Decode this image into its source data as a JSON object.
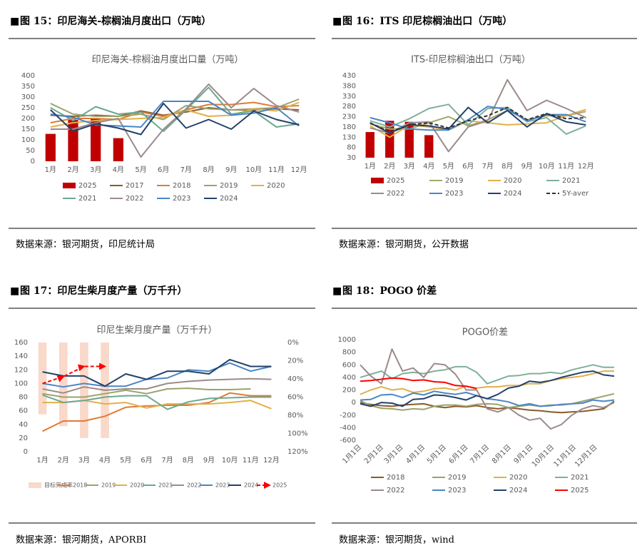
{
  "captions": [
    "图 15：印尼海关-棕榈油月度出口（万吨）",
    "图 16：ITS 印尼棕榈油出口（万吨）",
    "图 17：印尼生柴月度产量（万千升）",
    "图 18：POGO 价差"
  ],
  "sources": [
    "数据来源：银河期货，印尼统计局",
    "数据来源：银河期货，公开数据",
    "数据来源：银河期货，APORBI",
    "数据来源：银河期货，wind"
  ],
  "chart_data": [
    {
      "type": "line",
      "title": "印尼海关-棕榈油月度出口量（万吨）",
      "categories": [
        "1月",
        "2月",
        "3月",
        "4月",
        "5月",
        "6月",
        "7月",
        "8月",
        "9月",
        "10月",
        "11月",
        "12月"
      ],
      "ylim": [
        0,
        400
      ],
      "yticks": [
        0,
        50,
        100,
        150,
        200,
        250,
        300,
        350,
        400
      ],
      "grid": false,
      "series": [
        {
          "name": "2025",
          "type": "bar",
          "color": "#c00000",
          "values": [
            128,
            193,
            200,
            108,
            null,
            null,
            null,
            null,
            null,
            null,
            null,
            null
          ]
        },
        {
          "name": "2017",
          "color": "#8b5a2b",
          "values": [
            215,
            210,
            215,
            210,
            235,
            215,
            230,
            250,
            240,
            240,
            245,
            240
          ]
        },
        {
          "name": "2018",
          "color": "#e07b39",
          "values": [
            180,
            200,
            200,
            195,
            230,
            210,
            240,
            265,
            265,
            275,
            255,
            260
          ]
        },
        {
          "name": "2019",
          "color": "#9aa36a",
          "values": [
            270,
            220,
            210,
            210,
            220,
            195,
            260,
            245,
            240,
            245,
            250,
            290
          ]
        },
        {
          "name": "2020",
          "color": "#e2b04a",
          "values": [
            160,
            180,
            190,
            195,
            200,
            205,
            240,
            210,
            215,
            245,
            235,
            275
          ]
        },
        {
          "name": "2021",
          "color": "#6aa98f",
          "values": [
            250,
            190,
            255,
            220,
            230,
            140,
            240,
            345,
            220,
            235,
            160,
            175
          ]
        },
        {
          "name": "2022",
          "color": "#9c8a8a",
          "values": [
            150,
            150,
            180,
            200,
            20,
            150,
            245,
            360,
            250,
            340,
            260,
            230
          ]
        },
        {
          "name": "2023",
          "color": "#4a86c6",
          "values": [
            220,
            205,
            170,
            165,
            160,
            280,
            280,
            280,
            215,
            225,
            250,
            165
          ]
        },
        {
          "name": "2024",
          "color": "#24416b",
          "values": [
            240,
            140,
            175,
            155,
            125,
            270,
            155,
            195,
            150,
            235,
            195,
            170
          ]
        }
      ]
    },
    {
      "type": "line",
      "title": "ITS-印尼棕榈油出口（万吨）",
      "categories": [
        "1月",
        "2月",
        "3月",
        "4月",
        "5月",
        "6月",
        "7月",
        "8月",
        "9月",
        "10月",
        "11月",
        "12月"
      ],
      "ylim": [
        30,
        430
      ],
      "yticks": [
        30,
        80,
        130,
        180,
        230,
        280,
        330,
        380,
        430
      ],
      "grid": false,
      "series": [
        {
          "name": "2025",
          "type": "bar",
          "color": "#c00000",
          "values": [
            155,
            210,
            205,
            140,
            null,
            null,
            null,
            null,
            null,
            null,
            null,
            null
          ]
        },
        {
          "name": "2019",
          "color": "#a3a86b",
          "values": [
            195,
            170,
            170,
            200,
            230,
            185,
            215,
            260,
            215,
            235,
            235,
            255
          ]
        },
        {
          "name": "2020",
          "color": "#e2b04a",
          "values": [
            185,
            130,
            190,
            180,
            165,
            210,
            200,
            190,
            195,
            200,
            235,
            265
          ]
        },
        {
          "name": "2021",
          "color": "#7fb09a",
          "values": [
            210,
            180,
            220,
            270,
            290,
            190,
            270,
            275,
            205,
            225,
            145,
            185
          ]
        },
        {
          "name": "2022",
          "color": "#9c8a8a",
          "values": [
            175,
            150,
            200,
            205,
            60,
            180,
            210,
            410,
            260,
            310,
            270,
            225
          ]
        },
        {
          "name": "2023",
          "color": "#4a86c6",
          "values": [
            225,
            200,
            170,
            165,
            165,
            215,
            280,
            265,
            210,
            240,
            240,
            205
          ]
        },
        {
          "name": "2024",
          "color": "#24416b",
          "values": [
            200,
            150,
            190,
            185,
            170,
            275,
            200,
            260,
            180,
            245,
            205,
            190
          ]
        },
        {
          "name": "5Y-aver",
          "color": "#333333",
          "dash": true,
          "values": [
            200,
            155,
            190,
            200,
            175,
            210,
            235,
            275,
            215,
            245,
            220,
            225
          ]
        }
      ]
    },
    {
      "type": "line",
      "title": "印尼生柴月度产量（万千升）",
      "categories": [
        "1月",
        "2月",
        "3月",
        "4月",
        "5月",
        "6月",
        "7月",
        "8月",
        "9月",
        "10月",
        "11月",
        "12月"
      ],
      "ylim": [
        0,
        160
      ],
      "yticks": [
        0,
        20,
        40,
        60,
        80,
        100,
        120,
        140,
        160
      ],
      "y2lim": [
        0,
        120
      ],
      "y2reverse": true,
      "y2ticks": [
        {
          "value": 0,
          "label": "0%"
        },
        {
          "value": 20,
          "label": "20%"
        },
        {
          "value": 40,
          "label": "40%"
        },
        {
          "value": 60,
          "label": "60%"
        },
        {
          "value": 80,
          "label": "80%"
        },
        {
          "value": 100,
          "label": "100%"
        },
        {
          "value": 120,
          "label": "120%"
        }
      ],
      "grid": false,
      "series": [
        {
          "name": "目标完成率",
          "type": "bar",
          "axis": "y2",
          "color": "#f9d9c9",
          "values": [
            79,
            92,
            105,
            105,
            null,
            null,
            null,
            null,
            null,
            null,
            null,
            null
          ]
        },
        {
          "name": "2018",
          "color": "#e07b39",
          "values": [
            30,
            45,
            45,
            52,
            65,
            67,
            68,
            68,
            72,
            86,
            82,
            82
          ]
        },
        {
          "name": "2019",
          "color": "#9aa36a",
          "values": [
            85,
            80,
            80,
            85,
            90,
            85,
            92,
            93,
            91,
            91,
            92,
            null
          ]
        },
        {
          "name": "2020",
          "color": "#e2b04a",
          "values": [
            72,
            72,
            75,
            70,
            72,
            64,
            70,
            70,
            70,
            72,
            75,
            63
          ]
        },
        {
          "name": "2021",
          "color": "#6aa98f",
          "values": [
            83,
            72,
            75,
            80,
            82,
            82,
            62,
            73,
            78,
            79,
            80,
            80
          ]
        },
        {
          "name": "2022",
          "color": "#9c8a8a",
          "values": [
            92,
            86,
            95,
            90,
            92,
            92,
            100,
            103,
            105,
            106,
            107,
            106
          ]
        },
        {
          "name": "2023",
          "color": "#4a86c6",
          "values": [
            100,
            95,
            100,
            96,
            96,
            106,
            108,
            120,
            118,
            130,
            118,
            125
          ]
        },
        {
          "name": "2024",
          "color": "#24416b",
          "values": [
            117,
            111,
            111,
            96,
            114,
            106,
            118,
            118,
            114,
            135,
            125,
            125
          ]
        },
        {
          "name": "2025",
          "color": "#ff0000",
          "dash": true,
          "marker": "arrow",
          "values": [
            100,
            110,
            125,
            125,
            null,
            null,
            null,
            null,
            null,
            null,
            null,
            null
          ]
        }
      ]
    },
    {
      "type": "line",
      "title": "POGO价差",
      "x": [
        1,
        16,
        31,
        46,
        61,
        76,
        91,
        106,
        121,
        136,
        151,
        166,
        181,
        196,
        211,
        226,
        241,
        256,
        271,
        286,
        301,
        316,
        331,
        346,
        361
      ],
      "xlim": [
        1,
        365
      ],
      "xticks": [
        {
          "value": 1,
          "label": "1月1日"
        },
        {
          "value": 32,
          "label": "2月1日"
        },
        {
          "value": 60,
          "label": "3月1日"
        },
        {
          "value": 91,
          "label": "4月1日"
        },
        {
          "value": 121,
          "label": "5月1日"
        },
        {
          "value": 152,
          "label": "6月1日"
        },
        {
          "value": 182,
          "label": "7月1日"
        },
        {
          "value": 213,
          "label": "8月1日"
        },
        {
          "value": 244,
          "label": "9月1日"
        },
        {
          "value": 274,
          "label": "10月1日"
        },
        {
          "value": 305,
          "label": "11月1日"
        },
        {
          "value": 335,
          "label": "12月1日"
        }
      ],
      "ylim": [
        -600,
        1000
      ],
      "yticks": [
        -600,
        -400,
        -200,
        0,
        200,
        400,
        600,
        800,
        1000
      ],
      "grid": false,
      "series": [
        {
          "name": "2018",
          "color": "#8b5a2b",
          "values": [
            0,
            -30,
            -50,
            -60,
            -40,
            -30,
            -20,
            -60,
            -80,
            -60,
            -70,
            -50,
            -80,
            -100,
            -80,
            -100,
            -120,
            -130,
            -150,
            -160,
            -150,
            -140,
            -120,
            -100,
            20
          ]
        },
        {
          "name": "2019",
          "color": "#9aa36a",
          "values": [
            30,
            -50,
            -90,
            -100,
            -120,
            -100,
            -110,
            -60,
            -40,
            -40,
            -60,
            -30,
            -20,
            -30,
            -80,
            -60,
            -40,
            -60,
            -40,
            -40,
            -20,
            20,
            60,
            100,
            140
          ]
        },
        {
          "name": "2020",
          "color": "#e2b04a",
          "values": [
            130,
            200,
            250,
            200,
            220,
            160,
            180,
            220,
            230,
            200,
            260,
            230,
            250,
            250,
            270,
            270,
            300,
            300,
            350,
            380,
            400,
            420,
            460,
            500,
            500
          ]
        },
        {
          "name": "2021",
          "color": "#7fb09a",
          "values": [
            400,
            450,
            500,
            380,
            460,
            480,
            460,
            500,
            520,
            570,
            570,
            480,
            300,
            360,
            420,
            430,
            460,
            460,
            480,
            460,
            520,
            560,
            600,
            560,
            560
          ]
        },
        {
          "name": "2022",
          "color": "#9c8a8a",
          "values": [
            600,
            420,
            300,
            850,
            500,
            550,
            400,
            620,
            600,
            450,
            200,
            200,
            -100,
            -150,
            -80,
            -200,
            -280,
            -250,
            -420,
            -350,
            -200,
            -100,
            -50,
            -80,
            0
          ]
        },
        {
          "name": "2023",
          "color": "#4a86c6",
          "values": [
            40,
            50,
            120,
            130,
            80,
            150,
            120,
            180,
            150,
            130,
            160,
            110,
            60,
            40,
            10,
            -50,
            -20,
            -60,
            -50,
            -30,
            -20,
            -10,
            40,
            20,
            40
          ]
        },
        {
          "name": "2024",
          "color": "#24416b",
          "values": [
            -20,
            -60,
            0,
            -10,
            -60,
            50,
            60,
            120,
            110,
            80,
            40,
            110,
            60,
            130,
            230,
            260,
            340,
            320,
            350,
            400,
            440,
            480,
            500,
            440,
            420
          ]
        },
        {
          "name": "2025",
          "color": "#ff0000",
          "values": [
            340,
            350,
            370,
            390,
            380,
            350,
            360,
            330,
            320,
            270,
            260,
            220,
            null,
            null,
            null,
            null,
            null,
            null,
            null,
            null,
            null,
            null,
            null,
            null,
            null
          ]
        }
      ]
    }
  ]
}
